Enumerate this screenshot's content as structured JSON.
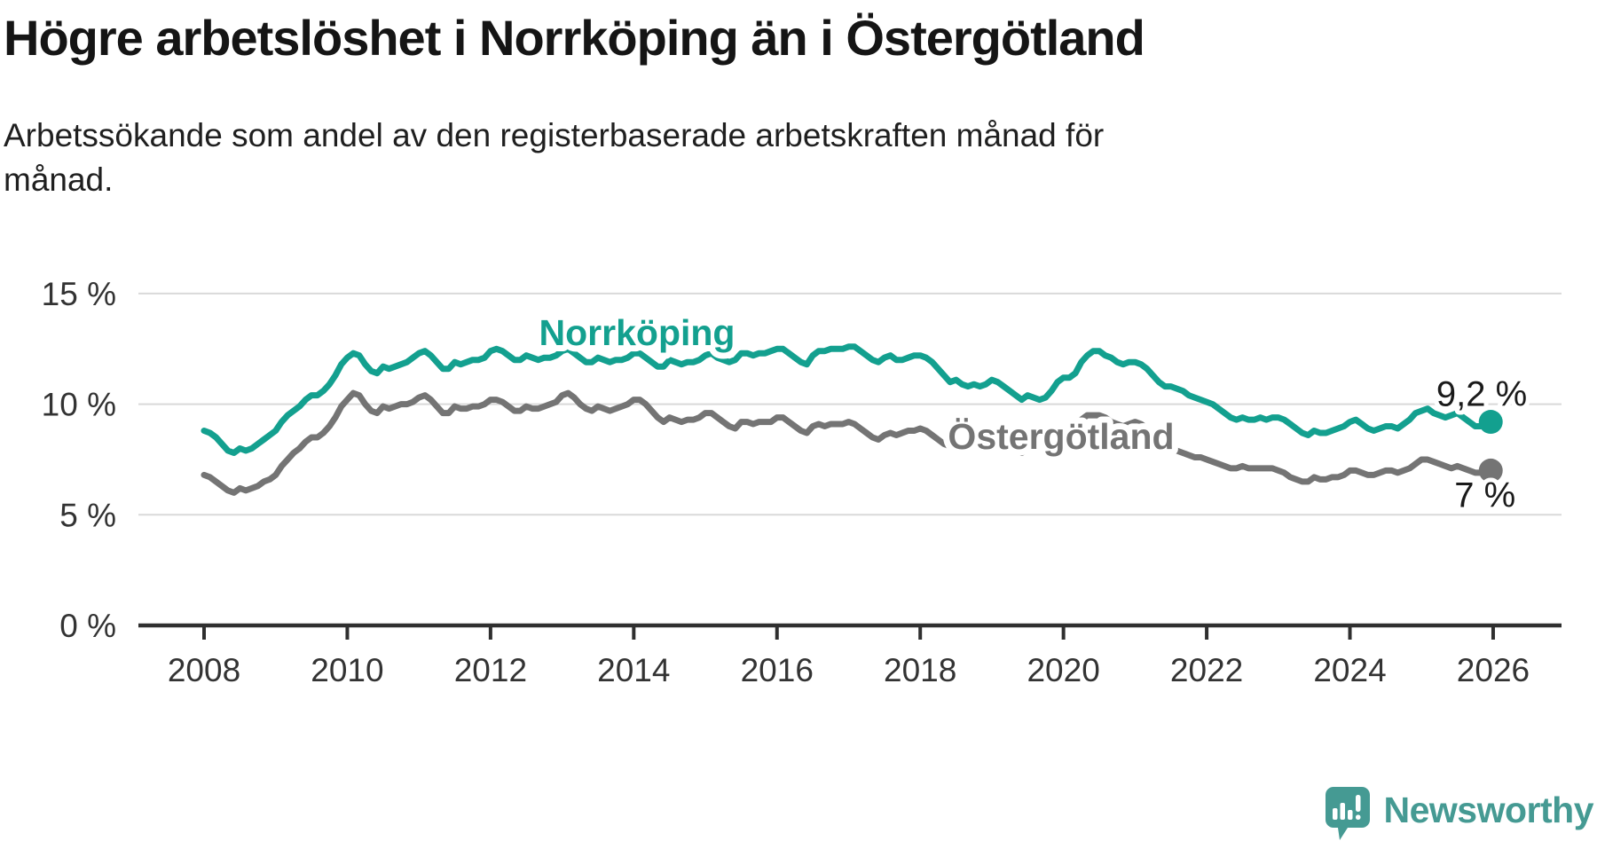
{
  "header": {
    "title": "Högre arbetslöshet i Norrköping än i Östergötland",
    "subtitle_line1": "Arbetssökande som andel av den registerbaserade arbetskraften månad för",
    "subtitle_line2": "månad."
  },
  "chart_data": {
    "type": "line",
    "unit": "%",
    "grid": true,
    "legend_position": "inline-labels",
    "x_start_year": 2008,
    "points_per_year": 12,
    "x_tick_years": [
      2008,
      2010,
      2012,
      2014,
      2016,
      2018,
      2020,
      2022,
      2024,
      2026
    ],
    "y_ticks": [
      {
        "value": 0,
        "label": "0 %"
      },
      {
        "value": 5,
        "label": "5 %"
      },
      {
        "value": 10,
        "label": "10 %"
      },
      {
        "value": 15,
        "label": "15 %"
      }
    ],
    "ylim": [
      0,
      15.8
    ],
    "series": [
      {
        "name": "Norrköping",
        "color": "#13a08f",
        "end_label": "9,2 %",
        "end_value": 9.2,
        "values": [
          8.8,
          8.7,
          8.5,
          8.2,
          7.9,
          7.8,
          8.0,
          7.9,
          8.0,
          8.2,
          8.4,
          8.6,
          8.8,
          9.2,
          9.5,
          9.7,
          9.9,
          10.2,
          10.4,
          10.4,
          10.6,
          10.9,
          11.3,
          11.8,
          12.1,
          12.3,
          12.2,
          11.8,
          11.5,
          11.4,
          11.7,
          11.6,
          11.7,
          11.8,
          11.9,
          12.1,
          12.3,
          12.4,
          12.2,
          11.9,
          11.6,
          11.6,
          11.9,
          11.8,
          11.9,
          12.0,
          12.0,
          12.1,
          12.4,
          12.5,
          12.4,
          12.2,
          12.0,
          12.0,
          12.2,
          12.1,
          12.0,
          12.1,
          12.1,
          12.2,
          12.4,
          12.5,
          12.3,
          12.1,
          11.9,
          11.9,
          12.1,
          12.0,
          11.9,
          12.0,
          12.0,
          12.1,
          12.3,
          12.3,
          12.1,
          11.9,
          11.7,
          11.7,
          12.0,
          11.9,
          11.8,
          11.9,
          11.9,
          12.0,
          12.2,
          12.3,
          12.1,
          12.0,
          11.9,
          12.0,
          12.3,
          12.3,
          12.2,
          12.3,
          12.3,
          12.4,
          12.5,
          12.5,
          12.3,
          12.1,
          11.9,
          11.8,
          12.2,
          12.4,
          12.4,
          12.5,
          12.5,
          12.5,
          12.6,
          12.6,
          12.4,
          12.2,
          12.0,
          11.9,
          12.1,
          12.2,
          12.0,
          12.0,
          12.1,
          12.2,
          12.2,
          12.1,
          11.9,
          11.6,
          11.3,
          11.0,
          11.1,
          10.9,
          10.8,
          10.9,
          10.8,
          10.9,
          11.1,
          11.0,
          10.8,
          10.6,
          10.4,
          10.2,
          10.4,
          10.3,
          10.2,
          10.3,
          10.6,
          11.0,
          11.2,
          11.2,
          11.4,
          11.9,
          12.2,
          12.4,
          12.4,
          12.2,
          12.1,
          11.9,
          11.8,
          11.9,
          11.9,
          11.8,
          11.6,
          11.3,
          11.0,
          10.8,
          10.8,
          10.7,
          10.6,
          10.4,
          10.3,
          10.2,
          10.1,
          10.0,
          9.8,
          9.6,
          9.4,
          9.3,
          9.4,
          9.3,
          9.3,
          9.4,
          9.3,
          9.4,
          9.4,
          9.3,
          9.1,
          8.9,
          8.7,
          8.6,
          8.8,
          8.7,
          8.7,
          8.8,
          8.9,
          9.0,
          9.2,
          9.3,
          9.1,
          8.9,
          8.8,
          8.9,
          9.0,
          9.0,
          8.9,
          9.1,
          9.3,
          9.6,
          9.7,
          9.8,
          9.6,
          9.5,
          9.4,
          9.5,
          9.6,
          9.4,
          9.2,
          9.0,
          9.0,
          9.2
        ]
      },
      {
        "name": "Östergötland",
        "color": "#747474",
        "end_label": "7 %",
        "end_value": 7.0,
        "values": [
          6.8,
          6.7,
          6.5,
          6.3,
          6.1,
          6.0,
          6.2,
          6.1,
          6.2,
          6.3,
          6.5,
          6.6,
          6.8,
          7.2,
          7.5,
          7.8,
          8.0,
          8.3,
          8.5,
          8.5,
          8.7,
          9.0,
          9.4,
          9.9,
          10.2,
          10.5,
          10.4,
          10.0,
          9.7,
          9.6,
          9.9,
          9.8,
          9.9,
          10.0,
          10.0,
          10.1,
          10.3,
          10.4,
          10.2,
          9.9,
          9.6,
          9.6,
          9.9,
          9.8,
          9.8,
          9.9,
          9.9,
          10.0,
          10.2,
          10.2,
          10.1,
          9.9,
          9.7,
          9.7,
          9.9,
          9.8,
          9.8,
          9.9,
          10.0,
          10.1,
          10.4,
          10.5,
          10.3,
          10.0,
          9.8,
          9.7,
          9.9,
          9.8,
          9.7,
          9.8,
          9.9,
          10.0,
          10.2,
          10.2,
          10.0,
          9.7,
          9.4,
          9.2,
          9.4,
          9.3,
          9.2,
          9.3,
          9.3,
          9.4,
          9.6,
          9.6,
          9.4,
          9.2,
          9.0,
          8.9,
          9.2,
          9.2,
          9.1,
          9.2,
          9.2,
          9.2,
          9.4,
          9.4,
          9.2,
          9.0,
          8.8,
          8.7,
          9.0,
          9.1,
          9.0,
          9.1,
          9.1,
          9.1,
          9.2,
          9.1,
          8.9,
          8.7,
          8.5,
          8.4,
          8.6,
          8.7,
          8.6,
          8.7,
          8.8,
          8.8,
          8.9,
          8.8,
          8.6,
          8.4,
          8.2,
          8.1,
          8.3,
          8.2,
          8.1,
          8.2,
          8.2,
          8.3,
          8.4,
          8.3,
          8.2,
          8.0,
          7.9,
          7.8,
          8.0,
          7.9,
          7.9,
          8.0,
          8.2,
          8.5,
          8.7,
          8.7,
          8.9,
          9.3,
          9.5,
          9.5,
          9.5,
          9.4,
          9.2,
          9.1,
          9.0,
          9.1,
          9.2,
          9.1,
          8.9,
          8.6,
          8.3,
          8.1,
          8.0,
          7.9,
          7.8,
          7.7,
          7.6,
          7.6,
          7.5,
          7.4,
          7.3,
          7.2,
          7.1,
          7.1,
          7.2,
          7.1,
          7.1,
          7.1,
          7.1,
          7.1,
          7.0,
          6.9,
          6.7,
          6.6,
          6.5,
          6.5,
          6.7,
          6.6,
          6.6,
          6.7,
          6.7,
          6.8,
          7.0,
          7.0,
          6.9,
          6.8,
          6.8,
          6.9,
          7.0,
          7.0,
          6.9,
          7.0,
          7.1,
          7.3,
          7.5,
          7.5,
          7.4,
          7.3,
          7.2,
          7.1,
          7.2,
          7.1,
          7.0,
          6.9,
          6.9,
          7.0
        ]
      }
    ],
    "colors": {
      "grid": "#d9d9d9",
      "axis": "#2f2f2f",
      "tick_text": "#333333",
      "value_label_text": "#1a1a1a",
      "background": "#ffffff"
    }
  },
  "footer": {
    "brand": "Newsworthy",
    "brand_color": "#459a93"
  }
}
